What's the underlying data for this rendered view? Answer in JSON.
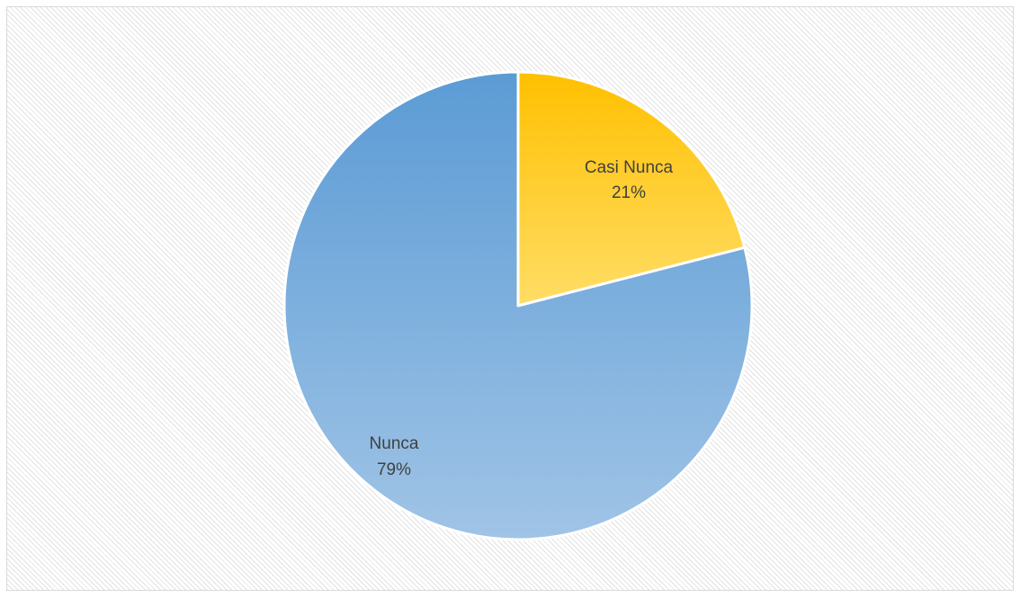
{
  "chart_data": {
    "type": "pie",
    "title": "",
    "categories": [
      "Casi Nunca",
      "Nunca"
    ],
    "values": [
      21,
      79
    ],
    "value_format": "percent",
    "data_labels": [
      {
        "category": "Casi Nunca",
        "percent": "21%"
      },
      {
        "category": "Nunca",
        "percent": "79%"
      }
    ],
    "colors": {
      "Casi Nunca": {
        "top": "#ffc000",
        "bottom": "#ffdd66"
      },
      "Nunca": {
        "top": "#5b9bd5",
        "bottom": "#a0c4e6"
      }
    },
    "slice_border": "#ffffff",
    "start_angle": "12 o'clock",
    "direction": "clockwise",
    "legend": "none"
  }
}
